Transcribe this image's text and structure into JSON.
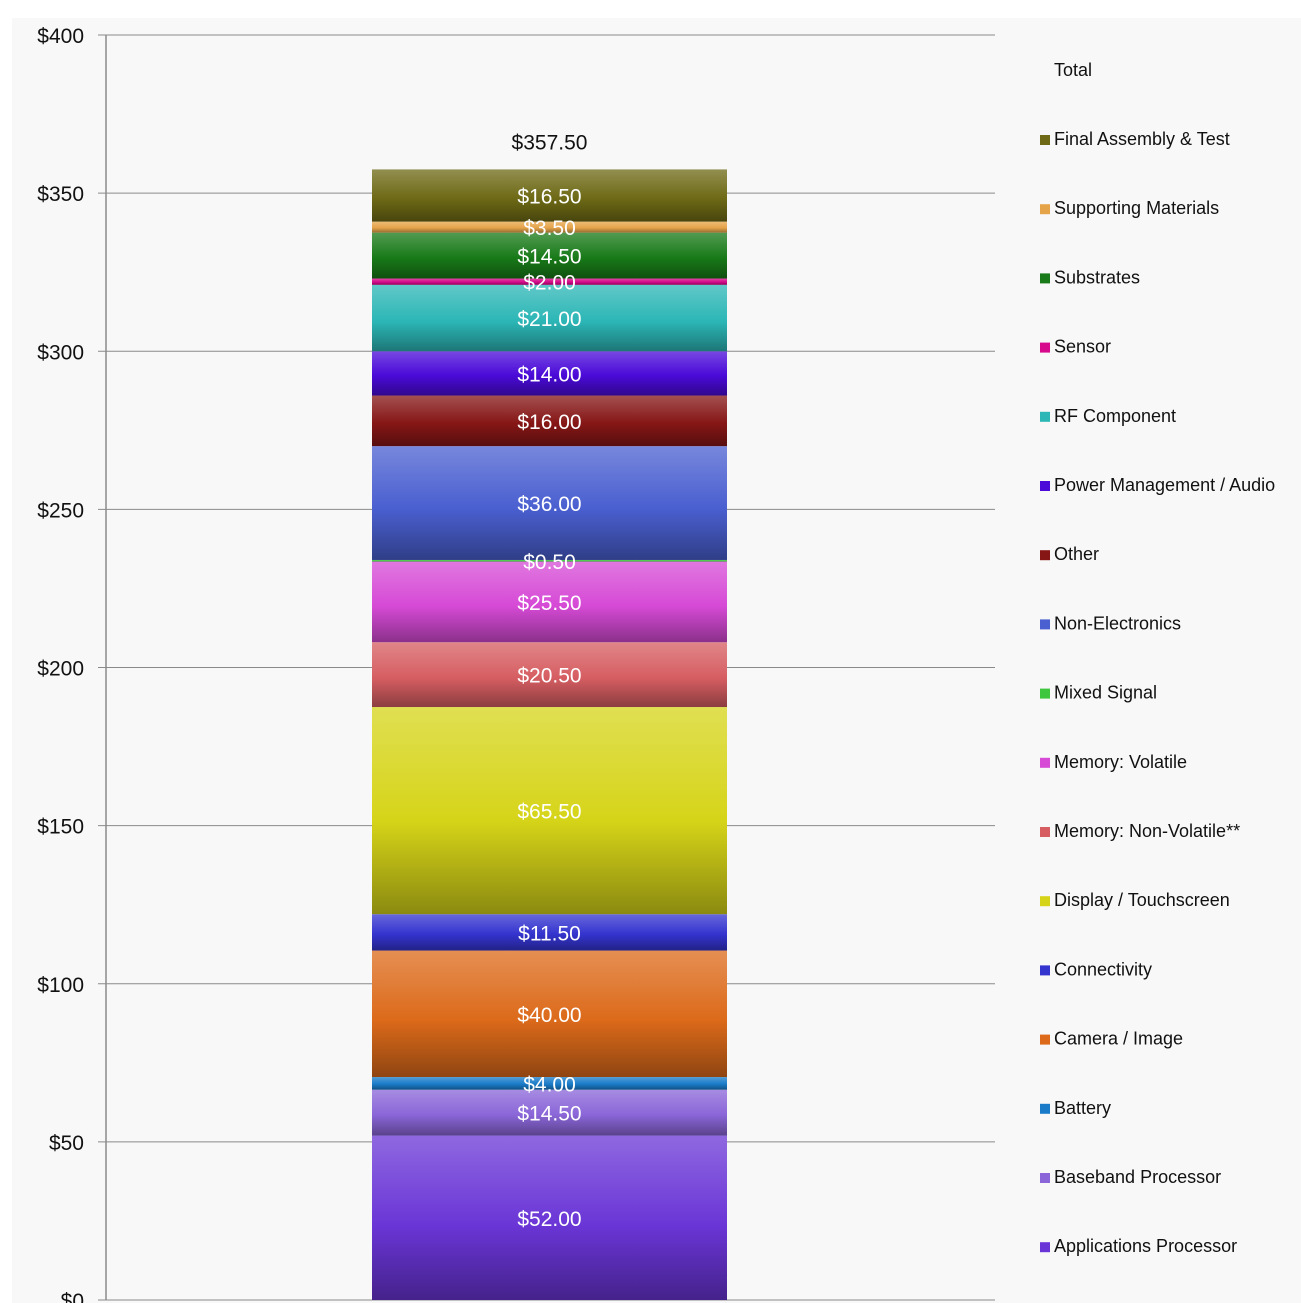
{
  "chart_data": {
    "type": "bar",
    "stacked": true,
    "categories": [
      ""
    ],
    "ylim": [
      0,
      400
    ],
    "yticks": [
      0,
      50,
      100,
      150,
      200,
      250,
      300,
      350,
      400
    ],
    "ytick_labels": [
      "$0",
      "$50",
      "$100",
      "$150",
      "$200",
      "$250",
      "$300",
      "$350",
      "$400"
    ],
    "grid": true,
    "legend_position": "right",
    "legend_title": "Total",
    "total": 357.5,
    "total_label": "$357.50",
    "series": [
      {
        "name": "Applications Processor",
        "value": 52.0,
        "label": "$52.00",
        "color": "#6a35d6"
      },
      {
        "name": "Baseband Processor",
        "value": 14.5,
        "label": "$14.50",
        "color": "#8a66d8"
      },
      {
        "name": "Battery",
        "value": 4.0,
        "label": "$4.00",
        "color": "#1a7cc9"
      },
      {
        "name": "Camera / Image",
        "value": 40.0,
        "label": "$40.00",
        "color": "#dc6a1a"
      },
      {
        "name": "Connectivity",
        "value": 11.5,
        "label": "$11.50",
        "color": "#3434cf"
      },
      {
        "name": "Display / Touchscreen",
        "value": 65.5,
        "label": "$65.50",
        "color": "#d6d418"
      },
      {
        "name": "Memory: Non-Volatile**",
        "value": 20.5,
        "label": "$20.50",
        "color": "#d65e62"
      },
      {
        "name": "Memory: Volatile",
        "value": 25.5,
        "label": "$25.50",
        "color": "#d64ad6"
      },
      {
        "name": "Mixed Signal",
        "value": 0.5,
        "label": "$0.50",
        "color": "#3ec63e"
      },
      {
        "name": "Non-Electronics",
        "value": 36.0,
        "label": "$36.00",
        "color": "#4a5fd0"
      },
      {
        "name": "Other",
        "value": 16.0,
        "label": "$16.00",
        "color": "#861616"
      },
      {
        "name": "Power Management / Audio",
        "value": 14.0,
        "label": "$14.00",
        "color": "#4a0ad8"
      },
      {
        "name": "RF Component",
        "value": 21.0,
        "label": "$21.00",
        "color": "#2cb6b6"
      },
      {
        "name": "Sensor",
        "value": 2.0,
        "label": "$2.00",
        "color": "#d60a8a"
      },
      {
        "name": "Substrates",
        "value": 14.5,
        "label": "$14.50",
        "color": "#187a18"
      },
      {
        "name": "Supporting Materials",
        "value": 3.5,
        "label": "$3.50",
        "color": "#e6a44a"
      },
      {
        "name": "Final Assembly & Test",
        "value": 16.5,
        "label": "$16.50",
        "color": "#6e6a16"
      }
    ]
  }
}
